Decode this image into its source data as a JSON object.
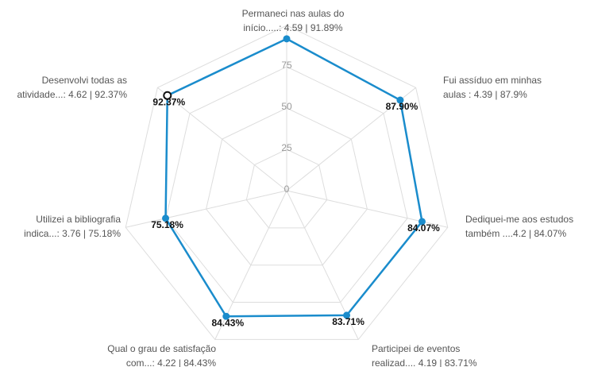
{
  "chart_data": {
    "type": "radar",
    "categories": [
      [
        "Permaneci nas aulas do",
        "início.....: 4.59 | 91.89%"
      ],
      [
        "Fui assíduo em minhas",
        "aulas : 4.39 | 87.9%"
      ],
      [
        "Dediquei-me aos estudos",
        "também ....4.2 | 84.07%"
      ],
      [
        "Participei de eventos",
        "realizad.... 4.19 | 83.71%"
      ],
      [
        "Qual o grau de satisfação",
        "com...: 4.22 | 84.43%"
      ],
      [
        "Utilizei a bibliografia",
        "indica...: 3.76 | 75.18%"
      ],
      [
        "Desenvolvi  todas as",
        "atividade...: 4.62 | 92.37%"
      ]
    ],
    "values": [
      91.89,
      87.9,
      84.07,
      83.71,
      84.43,
      75.18,
      92.37
    ],
    "value_labels": [
      null,
      "87.90%",
      "84.07%",
      "83.71%",
      "84.43%",
      "75.18%",
      "92.37%"
    ],
    "color": "#1a8ccc",
    "ylim": [
      0,
      100
    ],
    "yticks": [
      0,
      25,
      50,
      75
    ],
    "grid": true
  }
}
